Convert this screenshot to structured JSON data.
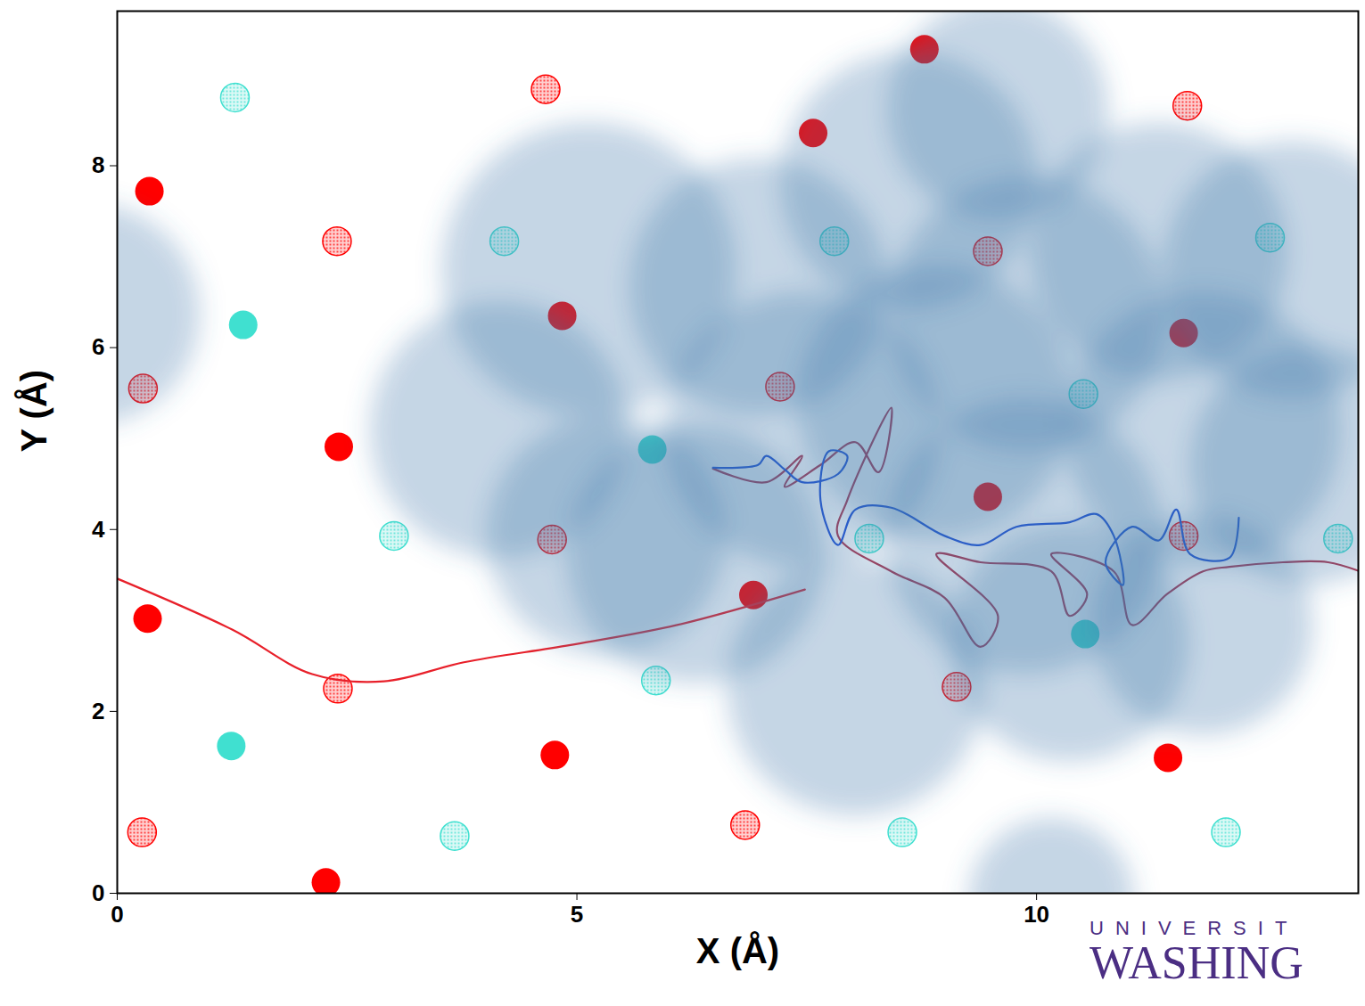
{
  "chart_data": {
    "type": "scatter",
    "xlabel": "X (Å)",
    "ylabel": "Y (Å)",
    "xlim": [
      0,
      13.5
    ],
    "ylim": [
      0,
      9.7
    ],
    "xticks": [
      0,
      5,
      10
    ],
    "yticks": [
      0,
      2,
      4,
      6,
      8
    ],
    "grid": false,
    "annotations": [
      "UNIVERSIT",
      "WASHING"
    ],
    "series": [
      {
        "type": "scatter",
        "color": "#ff0000",
        "marker": "filled",
        "x": [
          0.33,
          2.41,
          2.27,
          4.76,
          7.57,
          11.43,
          4.84,
          6.92,
          9.47,
          11.6,
          0.35,
          8.78
        ],
        "y": [
          3.02,
          4.91,
          0.12,
          1.52,
          8.36,
          1.49,
          6.35,
          3.28,
          4.36,
          6.16,
          7.72,
          9.28
        ]
      },
      {
        "type": "scatter",
        "color": "#ff0000",
        "marker": "dotted",
        "x": [
          0.27,
          2.39,
          4.66,
          0.28,
          2.4,
          4.73,
          6.83,
          7.21,
          9.47,
          9.13,
          11.64,
          11.6
        ],
        "y": [
          0.67,
          7.17,
          8.84,
          5.55,
          2.25,
          3.89,
          0.75,
          5.57,
          7.06,
          2.27,
          8.66,
          3.93
        ]
      },
      {
        "type": "scatter",
        "color": "#40e0d0",
        "marker": "filled",
        "x": [
          1.37,
          1.24,
          5.82,
          10.53
        ],
        "y": [
          6.25,
          1.62,
          4.88,
          2.85
        ]
      },
      {
        "type": "scatter",
        "color": "#40e0d0",
        "marker": "dotted",
        "x": [
          1.28,
          3.01,
          3.67,
          4.21,
          5.86,
          7.8,
          8.18,
          8.54,
          10.51,
          12.06,
          12.54,
          13.28
        ],
        "y": [
          8.75,
          3.93,
          0.63,
          7.17,
          2.34,
          7.17,
          3.9,
          0.67,
          5.49,
          0.67,
          7.21,
          3.9
        ]
      },
      {
        "type": "line",
        "color": "#e8202a",
        "line_style": "solid",
        "x": [
          0,
          1.25,
          2.12,
          2.9,
          3.77,
          4.93,
          6.09,
          7.48
        ],
        "y": [
          3.46,
          2.9,
          2.41,
          2.33,
          2.54,
          2.73,
          2.95,
          3.34
        ]
      },
      {
        "type": "line",
        "color": "#b0344c",
        "line_style": "solid",
        "x": [
          6.48,
          7.06,
          7.45,
          7.26,
          7.65,
          8.03,
          8.28,
          8.42,
          7.94,
          7.84,
          8.42,
          9.0,
          9.39,
          9.58,
          8.91,
          9.39,
          10.16,
          10.36,
          10.55,
          10.16,
          10.84,
          11.04,
          11.42,
          11.81,
          12.1,
          12.68,
          13.17,
          13.57
        ],
        "y": [
          4.67,
          4.52,
          4.81,
          4.47,
          4.71,
          4.96,
          4.63,
          5.34,
          4.32,
          3.93,
          3.54,
          3.25,
          2.71,
          3.05,
          3.73,
          3.64,
          3.54,
          3.05,
          3.29,
          3.73,
          3.54,
          2.95,
          3.29,
          3.54,
          3.59,
          3.64,
          3.64,
          3.52
        ]
      },
      {
        "type": "line",
        "color": "#1f4fd8",
        "line_style": "solid",
        "x": [
          6.48,
          6.97,
          7.06,
          7.26,
          7.45,
          7.84,
          7.94,
          7.74,
          7.65,
          7.84,
          8.03,
          8.42,
          9.0,
          9.39,
          9.78,
          10.36,
          10.65,
          10.84,
          10.94,
          10.75,
          11.04,
          11.33,
          11.52,
          11.67,
          12.1,
          12.2
        ],
        "y": [
          4.68,
          4.71,
          4.81,
          4.66,
          4.52,
          4.61,
          4.81,
          4.86,
          4.32,
          3.83,
          4.22,
          4.24,
          3.93,
          3.83,
          4.03,
          4.08,
          4.17,
          3.93,
          3.39,
          3.64,
          4.03,
          3.88,
          4.22,
          3.73,
          3.69,
          4.13
        ]
      }
    ],
    "density": {
      "color": "#3f77a8",
      "x": [
        5.13,
        4.15,
        5.32,
        6.29,
        8.03,
        6.97,
        7.45,
        8.61,
        9.58,
        9.89,
        8.9,
        9.87,
        11.33,
        11.81,
        12.78,
        12.97,
        11.81,
        10.36,
        10.16,
        -0.3
      ],
      "y": [
        6.86,
        5.1,
        3.93,
        3.73,
        2.27,
        6.67,
        5.1,
        7.84,
        8.62,
        6.37,
        5.4,
        3.93,
        7.06,
        5.1,
        6.86,
        4.71,
        2.95,
        2.76,
        -0.08,
        6.37
      ],
      "r": [
        1.6,
        1.4,
        1.3,
        1.4,
        1.4,
        1.4,
        1.5,
        1.4,
        1.2,
        1.5,
        1.5,
        1.5,
        1.4,
        1.5,
        1.4,
        1.3,
        1.2,
        1.3,
        0.9,
        1.2
      ]
    }
  }
}
